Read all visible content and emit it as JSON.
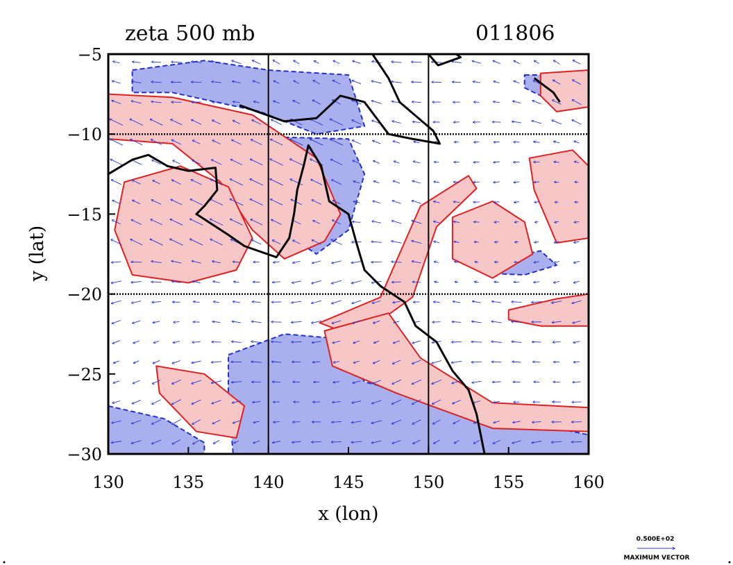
{
  "chart_data": {
    "type": "contour",
    "title_left": "zeta 500 mb",
    "title_right": "011806",
    "xlabel": "x (lon)",
    "ylabel": "y (lat)",
    "xlim": [
      130,
      160
    ],
    "ylim": [
      -30,
      -5
    ],
    "x_ticks": [
      130,
      135,
      140,
      145,
      150,
      155,
      160
    ],
    "x_tick_labels": [
      "130",
      "135",
      "140",
      "145",
      "150",
      "155",
      "160"
    ],
    "y_ticks": [
      -5,
      -10,
      -15,
      -20,
      -25,
      -30
    ],
    "y_tick_labels": [
      "−5",
      "−10",
      "−15",
      "−20",
      "−25",
      "−30"
    ],
    "gridlines": {
      "x": [
        140,
        150
      ],
      "y": [
        -10,
        -20
      ]
    },
    "legend": {
      "value_label": "0.500E+02",
      "caption": "MAXIMUM VECTOR"
    },
    "colors": {
      "positive_fill": "#f7c6c6",
      "positive_line": "#e02020",
      "negative_fill": "#aab0ee",
      "negative_line": "#2030d0",
      "vector": "#2535d8",
      "coastline": "#000000"
    },
    "positive_regions": [
      {
        "name": "west-band",
        "points": [
          [
            130,
            -7.5
          ],
          [
            134,
            -7.7
          ],
          [
            139,
            -8.8
          ],
          [
            143,
            -11.5
          ],
          [
            144.5,
            -15
          ],
          [
            143.5,
            -16.7
          ],
          [
            141,
            -17.8
          ],
          [
            139,
            -16
          ],
          [
            137,
            -13
          ],
          [
            134,
            -10.6
          ],
          [
            130,
            -10.3
          ]
        ]
      },
      {
        "name": "arnhem-patch",
        "points": [
          [
            131,
            -13
          ],
          [
            134.5,
            -12
          ],
          [
            137.5,
            -13.3
          ],
          [
            139,
            -16.5
          ],
          [
            138,
            -18.5
          ],
          [
            135,
            -19.3
          ],
          [
            131.5,
            -18.8
          ],
          [
            130.4,
            -16
          ]
        ]
      },
      {
        "name": "central-arc",
        "points": [
          [
            143.2,
            -21.8
          ],
          [
            147,
            -20.2
          ],
          [
            149.5,
            -14.5
          ],
          [
            152.5,
            -12.6
          ],
          [
            153,
            -13.4
          ],
          [
            150.5,
            -15.8
          ],
          [
            149,
            -20.2
          ],
          [
            146.8,
            -21.8
          ],
          [
            145,
            -22.5
          ]
        ]
      },
      {
        "name": "south-band",
        "points": [
          [
            143.5,
            -22.3
          ],
          [
            147.5,
            -21.2
          ],
          [
            149.5,
            -24
          ],
          [
            154,
            -26.8
          ],
          [
            160,
            -27.1
          ],
          [
            160,
            -28.6
          ],
          [
            154,
            -28.4
          ],
          [
            148,
            -26.2
          ],
          [
            144,
            -24.5
          ]
        ]
      },
      {
        "name": "coral-patch",
        "points": [
          [
            151.5,
            -15.2
          ],
          [
            154,
            -14.2
          ],
          [
            156,
            -15.5
          ],
          [
            156.5,
            -17.5
          ],
          [
            154,
            -19
          ],
          [
            151.5,
            -17.8
          ]
        ]
      },
      {
        "name": "east-patch",
        "points": [
          [
            156.3,
            -11.5
          ],
          [
            159,
            -11
          ],
          [
            160,
            -12
          ],
          [
            160,
            -16.5
          ],
          [
            158,
            -16.8
          ],
          [
            156.6,
            -13.5
          ]
        ]
      },
      {
        "name": "southeast-patch",
        "points": [
          [
            155,
            -21
          ],
          [
            158,
            -20.3
          ],
          [
            160,
            -20
          ],
          [
            160,
            -22
          ],
          [
            157,
            -22
          ],
          [
            155,
            -21.6
          ]
        ]
      },
      {
        "name": "southwest-patch",
        "points": [
          [
            133,
            -24.5
          ],
          [
            136,
            -25
          ],
          [
            138.5,
            -27
          ],
          [
            138,
            -29
          ],
          [
            135.5,
            -28.6
          ],
          [
            133.2,
            -26.2
          ]
        ]
      },
      {
        "name": "ne-corner",
        "points": [
          [
            157,
            -6.2
          ],
          [
            160,
            -6
          ],
          [
            160,
            -8.3
          ],
          [
            158,
            -8.6
          ],
          [
            157,
            -7.6
          ]
        ]
      }
    ],
    "negative_regions": [
      {
        "name": "top-west",
        "points": [
          [
            131.5,
            -6
          ],
          [
            136,
            -5.4
          ],
          [
            140,
            -6
          ],
          [
            145,
            -6.3
          ],
          [
            146,
            -9.5
          ],
          [
            143,
            -10
          ],
          [
            139.5,
            -8.6
          ],
          [
            134,
            -7.4
          ],
          [
            131.5,
            -7.4
          ]
        ]
      },
      {
        "name": "gulf-band",
        "points": [
          [
            141,
            -10.2
          ],
          [
            145,
            -10.3
          ],
          [
            146,
            -12.5
          ],
          [
            145,
            -16
          ],
          [
            143,
            -17.5
          ],
          [
            141.5,
            -16.5
          ],
          [
            142.5,
            -13
          ]
        ]
      },
      {
        "name": "central-south",
        "points": [
          [
            137.5,
            -23.8
          ],
          [
            141,
            -22.5
          ],
          [
            144.5,
            -22.8
          ],
          [
            146,
            -25.5
          ],
          [
            150,
            -26.5
          ],
          [
            153.5,
            -27.5
          ],
          [
            160,
            -28.8
          ],
          [
            160,
            -30
          ],
          [
            137.8,
            -30
          ],
          [
            137.5,
            -26.5
          ]
        ]
      },
      {
        "name": "southwest-corner",
        "points": [
          [
            130,
            -27
          ],
          [
            133.5,
            -27.8
          ],
          [
            136,
            -29.3
          ],
          [
            136,
            -30
          ],
          [
            130,
            -30
          ]
        ]
      },
      {
        "name": "coral-neg",
        "points": [
          [
            153.5,
            -18
          ],
          [
            157,
            -17.3
          ],
          [
            158,
            -18.2
          ],
          [
            156,
            -18.8
          ],
          [
            153.5,
            -18.7
          ]
        ]
      },
      {
        "name": "east-neg",
        "points": [
          [
            156,
            -6.3
          ],
          [
            158.5,
            -6.3
          ],
          [
            158.8,
            -7.3
          ],
          [
            157,
            -7.6
          ],
          [
            156,
            -7.1
          ]
        ]
      }
    ],
    "coastlines": [
      {
        "name": "australia-north",
        "points": [
          [
            130,
            -12.5
          ],
          [
            131.5,
            -11.6
          ],
          [
            132.5,
            -11.3
          ],
          [
            133.7,
            -12
          ],
          [
            135,
            -12.3
          ],
          [
            136.7,
            -12.1
          ],
          [
            136.8,
            -13.5
          ],
          [
            136,
            -14.5
          ],
          [
            135.5,
            -15
          ],
          [
            137.5,
            -16.3
          ],
          [
            138.5,
            -17
          ],
          [
            140.5,
            -17.7
          ],
          [
            141.3,
            -16.5
          ],
          [
            141.6,
            -15
          ],
          [
            141.8,
            -13.5
          ],
          [
            142.2,
            -12
          ],
          [
            142.5,
            -10.7
          ],
          [
            143.3,
            -12
          ],
          [
            143.8,
            -14.2
          ],
          [
            145,
            -15
          ],
          [
            145.5,
            -16.8
          ],
          [
            146,
            -18.5
          ],
          [
            147,
            -19.5
          ],
          [
            148.5,
            -20.5
          ],
          [
            149.2,
            -22
          ],
          [
            150.5,
            -23
          ],
          [
            151.5,
            -24.8
          ],
          [
            152.5,
            -26
          ],
          [
            153,
            -27.5
          ],
          [
            153.5,
            -30
          ]
        ]
      },
      {
        "name": "new-guinea",
        "points": [
          [
            138.2,
            -8.2
          ],
          [
            141,
            -9.2
          ],
          [
            143,
            -9
          ],
          [
            144.5,
            -7.6
          ],
          [
            146,
            -8
          ],
          [
            147.5,
            -10
          ],
          [
            149,
            -10.3
          ],
          [
            150.7,
            -10.6
          ],
          [
            150.3,
            -9.8
          ],
          [
            148.2,
            -8
          ],
          [
            147.5,
            -6.5
          ],
          [
            146.5,
            -5
          ]
        ]
      },
      {
        "name": "new-britain",
        "points": [
          [
            150,
            -5
          ],
          [
            150.6,
            -5.7
          ],
          [
            152,
            -5.2
          ],
          [
            151.6,
            -4.9
          ]
        ]
      },
      {
        "name": "solomon",
        "points": [
          [
            156.6,
            -6.5
          ],
          [
            157.8,
            -7.4
          ],
          [
            158.2,
            -8
          ]
        ]
      }
    ],
    "vector_field": "wind vectors across the domain, generally east-southeasterly, max 0.500E+02"
  }
}
